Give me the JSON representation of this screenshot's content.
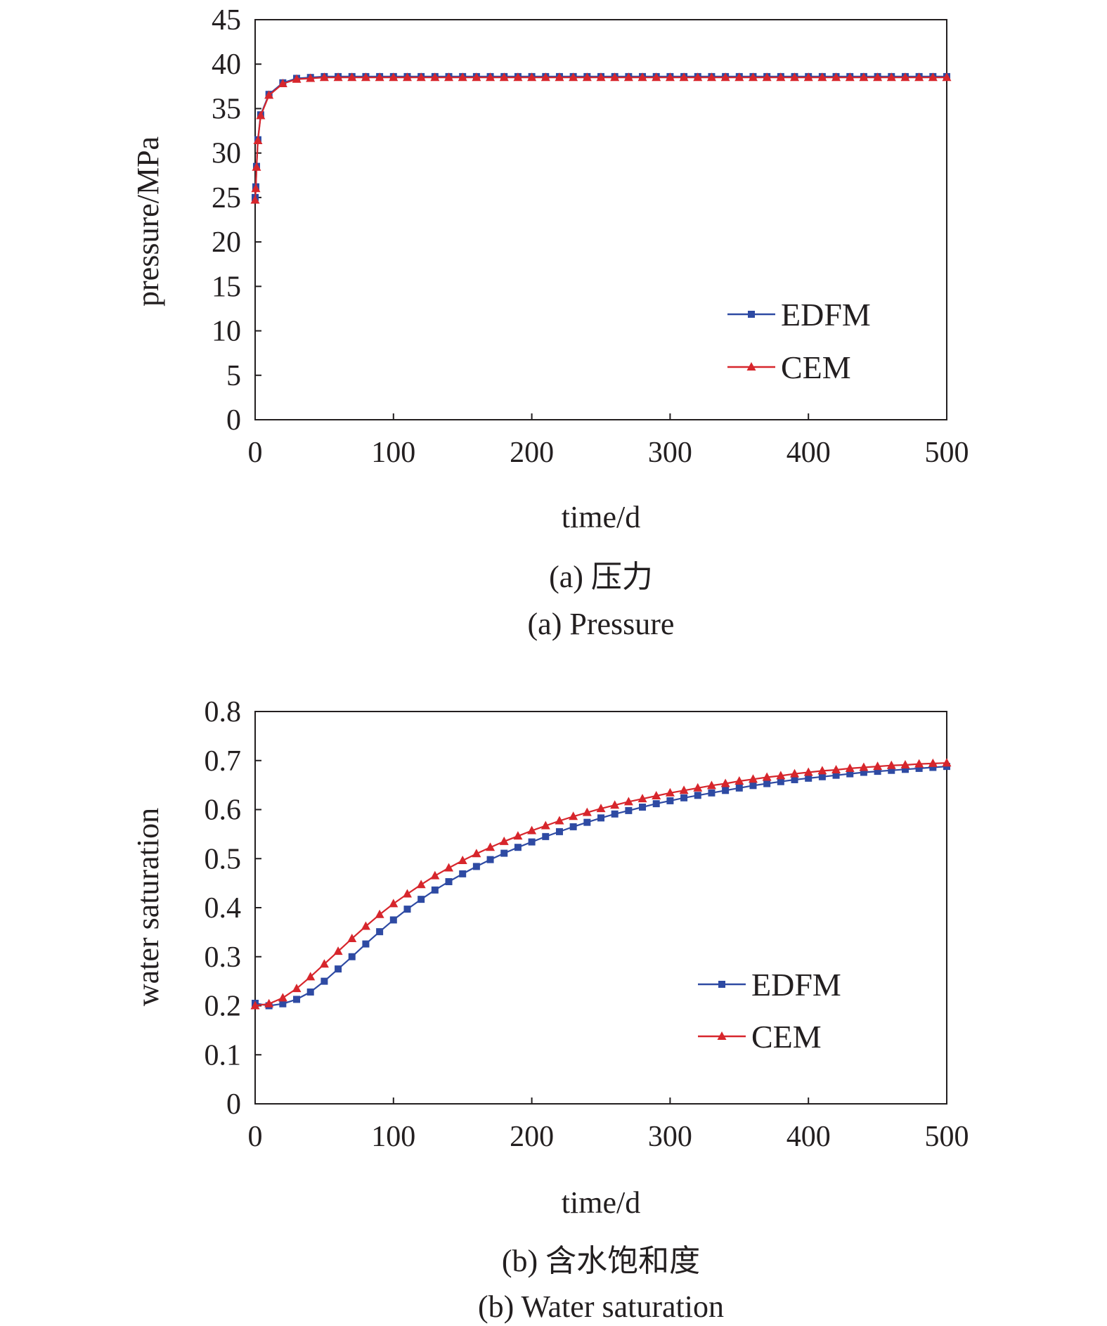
{
  "chart_data": [
    {
      "id": "a",
      "type": "line",
      "title": "",
      "caption_zh": "(a) 压力",
      "caption_en": "(a) Pressure",
      "xlabel": "time/d",
      "ylabel": "pressure/MPa",
      "xlim": [
        0,
        500
      ],
      "ylim": [
        0,
        45
      ],
      "xticks": [
        0,
        100,
        200,
        300,
        400,
        500
      ],
      "yticks": [
        0,
        5,
        10,
        15,
        20,
        25,
        30,
        35,
        40,
        45
      ],
      "grid": false,
      "legend_position": "right",
      "series": [
        {
          "name": "EDFM",
          "color": "#2e4aa3",
          "marker": "square",
          "x": [
            0,
            0.5,
            1,
            2,
            4,
            10,
            20,
            30,
            40,
            50,
            60,
            70,
            80,
            90,
            100,
            110,
            120,
            130,
            140,
            150,
            160,
            170,
            180,
            190,
            200,
            210,
            220,
            230,
            240,
            250,
            260,
            270,
            280,
            290,
            300,
            310,
            320,
            330,
            340,
            350,
            360,
            370,
            380,
            390,
            400,
            410,
            420,
            430,
            440,
            450,
            460,
            470,
            480,
            490,
            500
          ],
          "y": [
            25,
            26.2,
            28.5,
            31.5,
            34.3,
            36.6,
            37.9,
            38.4,
            38.5,
            38.6,
            38.6,
            38.6,
            38.6,
            38.6,
            38.6,
            38.6,
            38.6,
            38.6,
            38.6,
            38.6,
            38.6,
            38.6,
            38.6,
            38.6,
            38.6,
            38.6,
            38.6,
            38.6,
            38.6,
            38.6,
            38.6,
            38.6,
            38.6,
            38.6,
            38.6,
            38.6,
            38.6,
            38.6,
            38.6,
            38.6,
            38.6,
            38.6,
            38.6,
            38.6,
            38.6,
            38.6,
            38.6,
            38.6,
            38.6,
            38.6,
            38.6,
            38.6,
            38.6,
            38.6,
            38.6
          ]
        },
        {
          "name": "CEM",
          "color": "#d7262c",
          "marker": "triangle",
          "x": [
            0,
            0.5,
            1,
            2,
            4,
            10,
            20,
            30,
            40,
            50,
            60,
            70,
            80,
            90,
            100,
            110,
            120,
            130,
            140,
            150,
            160,
            170,
            180,
            190,
            200,
            210,
            220,
            230,
            240,
            250,
            260,
            270,
            280,
            290,
            300,
            310,
            320,
            330,
            340,
            350,
            360,
            370,
            380,
            390,
            400,
            410,
            420,
            430,
            440,
            450,
            460,
            470,
            480,
            490,
            500
          ],
          "y": [
            24.7,
            26,
            28.4,
            31.4,
            34.2,
            36.5,
            37.8,
            38.3,
            38.4,
            38.5,
            38.5,
            38.5,
            38.5,
            38.5,
            38.5,
            38.5,
            38.5,
            38.5,
            38.5,
            38.5,
            38.5,
            38.5,
            38.5,
            38.5,
            38.5,
            38.5,
            38.5,
            38.5,
            38.5,
            38.5,
            38.5,
            38.5,
            38.5,
            38.5,
            38.5,
            38.5,
            38.5,
            38.5,
            38.5,
            38.5,
            38.5,
            38.5,
            38.5,
            38.5,
            38.5,
            38.5,
            38.5,
            38.5,
            38.5,
            38.5,
            38.5,
            38.5,
            38.5,
            38.5,
            38.5
          ]
        }
      ]
    },
    {
      "id": "b",
      "type": "line",
      "title": "",
      "caption_zh": "(b) 含水饱和度",
      "caption_en": "(b) Water saturation",
      "xlabel": "time/d",
      "ylabel": "water saturation",
      "xlim": [
        0,
        500
      ],
      "ylim": [
        0,
        0.8
      ],
      "xticks": [
        0,
        100,
        200,
        300,
        400,
        500
      ],
      "yticks": [
        "0",
        "0.1",
        "0.2",
        "0.3",
        "0.4",
        "0.5",
        "0.6",
        "0.7",
        "0.8"
      ],
      "grid": false,
      "legend_position": "right",
      "series": [
        {
          "name": "EDFM",
          "color": "#2e4aa3",
          "marker": "square",
          "x": [
            0,
            10,
            20,
            30,
            40,
            50,
            60,
            70,
            80,
            90,
            100,
            110,
            120,
            130,
            140,
            150,
            160,
            170,
            180,
            190,
            200,
            210,
            220,
            230,
            240,
            250,
            260,
            270,
            280,
            290,
            300,
            310,
            320,
            330,
            340,
            350,
            360,
            370,
            380,
            390,
            400,
            410,
            420,
            430,
            440,
            450,
            460,
            470,
            480,
            490,
            500
          ],
          "y": [
            0.205,
            0.2,
            0.204,
            0.213,
            0.228,
            0.25,
            0.275,
            0.3,
            0.326,
            0.351,
            0.375,
            0.397,
            0.417,
            0.436,
            0.453,
            0.469,
            0.484,
            0.498,
            0.511,
            0.523,
            0.534,
            0.545,
            0.555,
            0.565,
            0.574,
            0.583,
            0.591,
            0.598,
            0.605,
            0.612,
            0.618,
            0.624,
            0.629,
            0.634,
            0.639,
            0.644,
            0.649,
            0.653,
            0.657,
            0.661,
            0.664,
            0.667,
            0.67,
            0.673,
            0.676,
            0.678,
            0.68,
            0.682,
            0.684,
            0.686,
            0.688
          ]
        },
        {
          "name": "CEM",
          "color": "#d7262c",
          "marker": "triangle",
          "x": [
            0,
            10,
            20,
            30,
            40,
            50,
            60,
            70,
            80,
            90,
            100,
            110,
            120,
            130,
            140,
            150,
            160,
            170,
            180,
            190,
            200,
            210,
            220,
            230,
            240,
            250,
            260,
            270,
            280,
            290,
            300,
            310,
            320,
            330,
            340,
            350,
            360,
            370,
            380,
            390,
            400,
            410,
            420,
            430,
            440,
            450,
            460,
            470,
            480,
            490,
            500
          ],
          "y": [
            0.2,
            0.204,
            0.216,
            0.235,
            0.259,
            0.285,
            0.311,
            0.337,
            0.362,
            0.386,
            0.408,
            0.428,
            0.447,
            0.465,
            0.481,
            0.496,
            0.51,
            0.523,
            0.535,
            0.546,
            0.557,
            0.567,
            0.577,
            0.586,
            0.594,
            0.602,
            0.609,
            0.616,
            0.622,
            0.628,
            0.634,
            0.639,
            0.644,
            0.649,
            0.653,
            0.658,
            0.662,
            0.666,
            0.669,
            0.673,
            0.676,
            0.679,
            0.681,
            0.684,
            0.686,
            0.688,
            0.69,
            0.691,
            0.693,
            0.694,
            0.695
          ]
        }
      ]
    }
  ]
}
